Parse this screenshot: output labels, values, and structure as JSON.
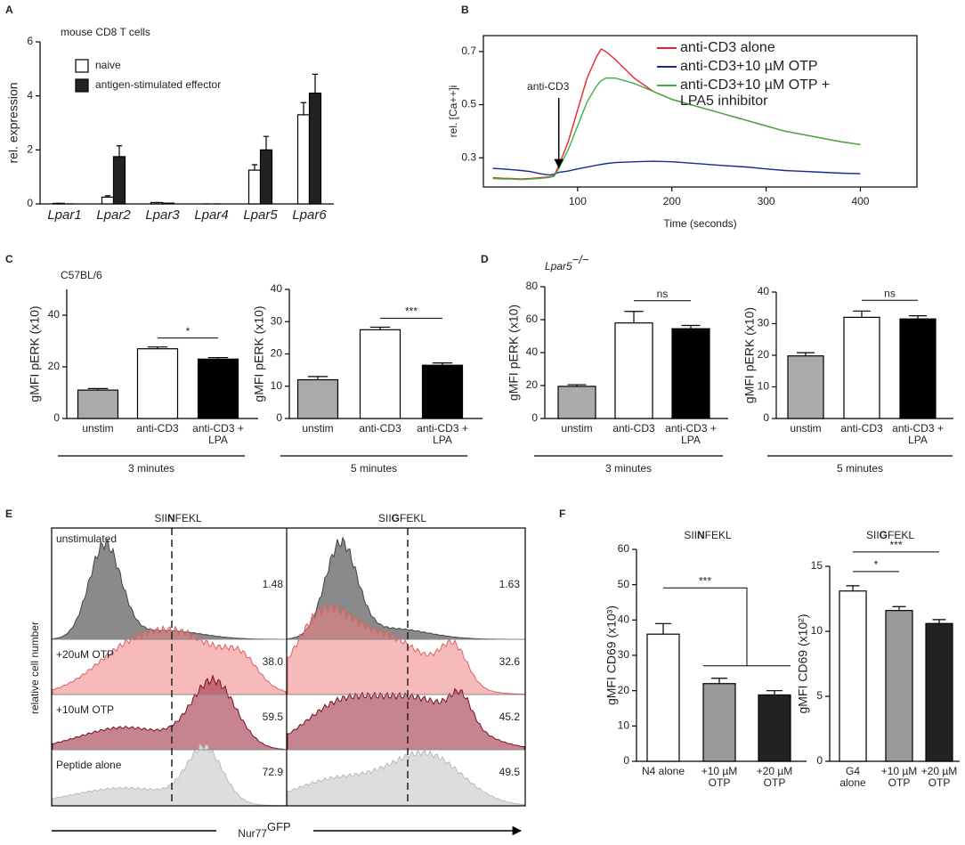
{
  "panel_labels": [
    "A",
    "B",
    "C",
    "D",
    "E",
    "F"
  ],
  "chart_data": [
    {
      "type": "bar",
      "title": "mouse CD8 T cells",
      "ylabel": "rel. expression",
      "categories": [
        "Lpar1",
        "Lpar2",
        "Lpar3",
        "Lpar4",
        "Lpar5",
        "Lpar6"
      ],
      "series": [
        {
          "name": "naive",
          "color": "#ffffff",
          "values": [
            0.02,
            0.25,
            0.05,
            0,
            1.25,
            3.3
          ],
          "errors": [
            0,
            0.05,
            0,
            0,
            0.2,
            0.45
          ]
        },
        {
          "name": "antigen-stimulated effector",
          "color": "#222222",
          "values": [
            0,
            1.75,
            0.03,
            0,
            2.0,
            4.1
          ],
          "errors": [
            0,
            0.4,
            0,
            0,
            0.5,
            0.7
          ]
        }
      ],
      "ylim": [
        0,
        6
      ],
      "yticks": [
        0,
        2,
        4,
        6
      ]
    },
    {
      "type": "line",
      "ylabel": "rel. [Ca++]i",
      "xlabel": "Time (seconds)",
      "x": [
        10,
        20,
        30,
        40,
        50,
        60,
        70,
        75,
        80,
        90,
        100,
        110,
        120,
        125,
        130,
        140,
        160,
        180,
        200,
        220,
        250,
        280,
        300,
        320,
        350,
        380,
        400
      ],
      "series": [
        {
          "name": "anti-CD3 alone",
          "color": "#e8222a",
          "values": [
            0.225,
            0.223,
            0.222,
            0.22,
            0.222,
            0.225,
            0.228,
            0.232,
            0.27,
            0.36,
            0.48,
            0.6,
            0.68,
            0.71,
            0.7,
            0.67,
            0.6,
            0.55,
            0.52,
            0.5,
            0.47,
            0.44,
            0.42,
            0.4,
            0.38,
            0.36,
            0.35
          ]
        },
        {
          "name": "anti-CD3+10 µM OTP",
          "color": "#1a2a8a",
          "values": [
            0.26,
            0.258,
            0.255,
            0.252,
            0.248,
            0.24,
            0.235,
            0.238,
            0.245,
            0.25,
            0.258,
            0.265,
            0.272,
            0.275,
            0.278,
            0.282,
            0.285,
            0.287,
            0.285,
            0.28,
            0.272,
            0.265,
            0.258,
            0.252,
            0.247,
            0.242,
            0.24
          ]
        },
        {
          "name": "anti-CD3+10 µM OTP + LPA5 inhibitor",
          "color": "#3cb043",
          "values": [
            0.222,
            0.22,
            0.22,
            0.218,
            0.22,
            0.222,
            0.226,
            0.23,
            0.26,
            0.33,
            0.42,
            0.51,
            0.57,
            0.59,
            0.6,
            0.6,
            0.58,
            0.55,
            0.52,
            0.5,
            0.47,
            0.44,
            0.42,
            0.4,
            0.38,
            0.36,
            0.35
          ]
        }
      ],
      "xlim": [
        0,
        460
      ],
      "xticks": [
        100,
        200,
        300,
        400
      ],
      "ylim": [
        0.19,
        0.76
      ],
      "yticks": [
        0.3,
        0.5,
        0.7
      ],
      "annotations": [
        {
          "text": "anti-CD3",
          "x": 80,
          "y": 0.25
        }
      ]
    },
    {
      "type": "bar",
      "title": "C57BL/6",
      "ylabel": "gMFI pERK (x10)",
      "categories": [
        "unstim",
        "anti-CD3",
        "anti-CD3 + LPA"
      ],
      "values": [
        11,
        27,
        23
      ],
      "errors": [
        0.6,
        0.7,
        0.6
      ],
      "colors": [
        "#aaaaaa",
        "#ffffff",
        "#000000"
      ],
      "ylim": [
        0,
        50
      ],
      "yticks": [
        0,
        20,
        40
      ],
      "significance": [
        {
          "from": 1,
          "to": 2,
          "label": "*"
        }
      ],
      "xgroup": "3 minutes"
    },
    {
      "type": "bar",
      "ylabel": "gMFI pERK (x10)",
      "categories": [
        "unstim",
        "anti-CD3",
        "anti-CD3 + LPA"
      ],
      "values": [
        12,
        27.5,
        16.5
      ],
      "errors": [
        1,
        0.8,
        0.7
      ],
      "colors": [
        "#aaaaaa",
        "#ffffff",
        "#000000"
      ],
      "ylim": [
        0,
        40
      ],
      "yticks": [
        0,
        10,
        20,
        30,
        40
      ],
      "significance": [
        {
          "from": 1,
          "to": 2,
          "label": "***"
        }
      ],
      "xgroup": "5 minutes"
    },
    {
      "type": "bar",
      "title_parts": [
        "Lpar5",
        "−/−"
      ],
      "ylabel": "gMFI pERK (x10)",
      "categories": [
        "unstim",
        "anti-CD3",
        "anti-CD3 + LPA"
      ],
      "values": [
        19.5,
        58,
        54.5
      ],
      "errors": [
        1,
        7,
        2
      ],
      "colors": [
        "#aaaaaa",
        "#ffffff",
        "#000000"
      ],
      "ylim": [
        0,
        80
      ],
      "yticks": [
        0,
        20,
        40,
        60,
        80
      ],
      "significance": [
        {
          "from": 1,
          "to": 2,
          "label": "ns"
        }
      ],
      "xgroup": "3 minutes"
    },
    {
      "type": "bar",
      "ylabel": "gMFI pERK (x10)",
      "categories": [
        "unstim",
        "anti-CD3",
        "anti-CD3 + LPA"
      ],
      "values": [
        19.8,
        32,
        31.5
      ],
      "errors": [
        1,
        2,
        1
      ],
      "colors": [
        "#aaaaaa",
        "#ffffff",
        "#000000"
      ],
      "ylim": [
        0,
        40
      ],
      "yticks": [
        0,
        10,
        20,
        30,
        40
      ],
      "significance": [
        {
          "from": 1,
          "to": 2,
          "label": "ns"
        }
      ],
      "xgroup": "5 minutes"
    },
    {
      "type": "bar",
      "title_parts": [
        "SII",
        "N",
        "FEKL"
      ],
      "ylabel": "gMFI CD69 (x10³)",
      "categories": [
        "N4 alone",
        "+10 µM OTP",
        "+20 µM OTP"
      ],
      "values": [
        36,
        22,
        18.8
      ],
      "errors": [
        3,
        1.5,
        1.2
      ],
      "colors": [
        "#ffffff",
        "#999999",
        "#222222"
      ],
      "ylim": [
        0,
        60
      ],
      "yticks": [
        0,
        10,
        20,
        30,
        40,
        50,
        60
      ],
      "significance": [
        {
          "from": 0,
          "to": [
            1,
            2
          ],
          "label": "***"
        }
      ]
    },
    {
      "type": "bar",
      "title_parts": [
        "SII",
        "G",
        "FEKL"
      ],
      "ylabel": "gMFI CD69 (x10²)",
      "categories": [
        "G4 alone",
        "+10 µM OTP",
        "+20 µM OTP"
      ],
      "values": [
        13.1,
        11.6,
        10.6
      ],
      "errors": [
        0.4,
        0.3,
        0.3
      ],
      "colors": [
        "#ffffff",
        "#999999",
        "#222222"
      ],
      "ylim": [
        0,
        15
      ],
      "yticks": [
        0,
        5,
        10,
        15
      ],
      "significance": [
        {
          "from": 0,
          "to": 1,
          "label": "*"
        },
        {
          "from": 0,
          "to": 2,
          "label": "***"
        }
      ]
    }
  ],
  "flow": {
    "columns": [
      [
        "SII",
        "N",
        "FEKL"
      ],
      [
        "SII",
        "G",
        "FEKL"
      ]
    ],
    "rows": [
      "unstimulated",
      "+20uM OTP",
      "+10uM OTP",
      "Peptide alone"
    ],
    "percent": [
      [
        "1.48",
        "1.63"
      ],
      [
        "38.0",
        "32.6"
      ],
      [
        "59.5",
        "45.2"
      ],
      [
        "72.9",
        "49.5"
      ]
    ],
    "ylabel": "relative cell number",
    "xlabel": [
      "Nur77",
      "GFP"
    ]
  }
}
